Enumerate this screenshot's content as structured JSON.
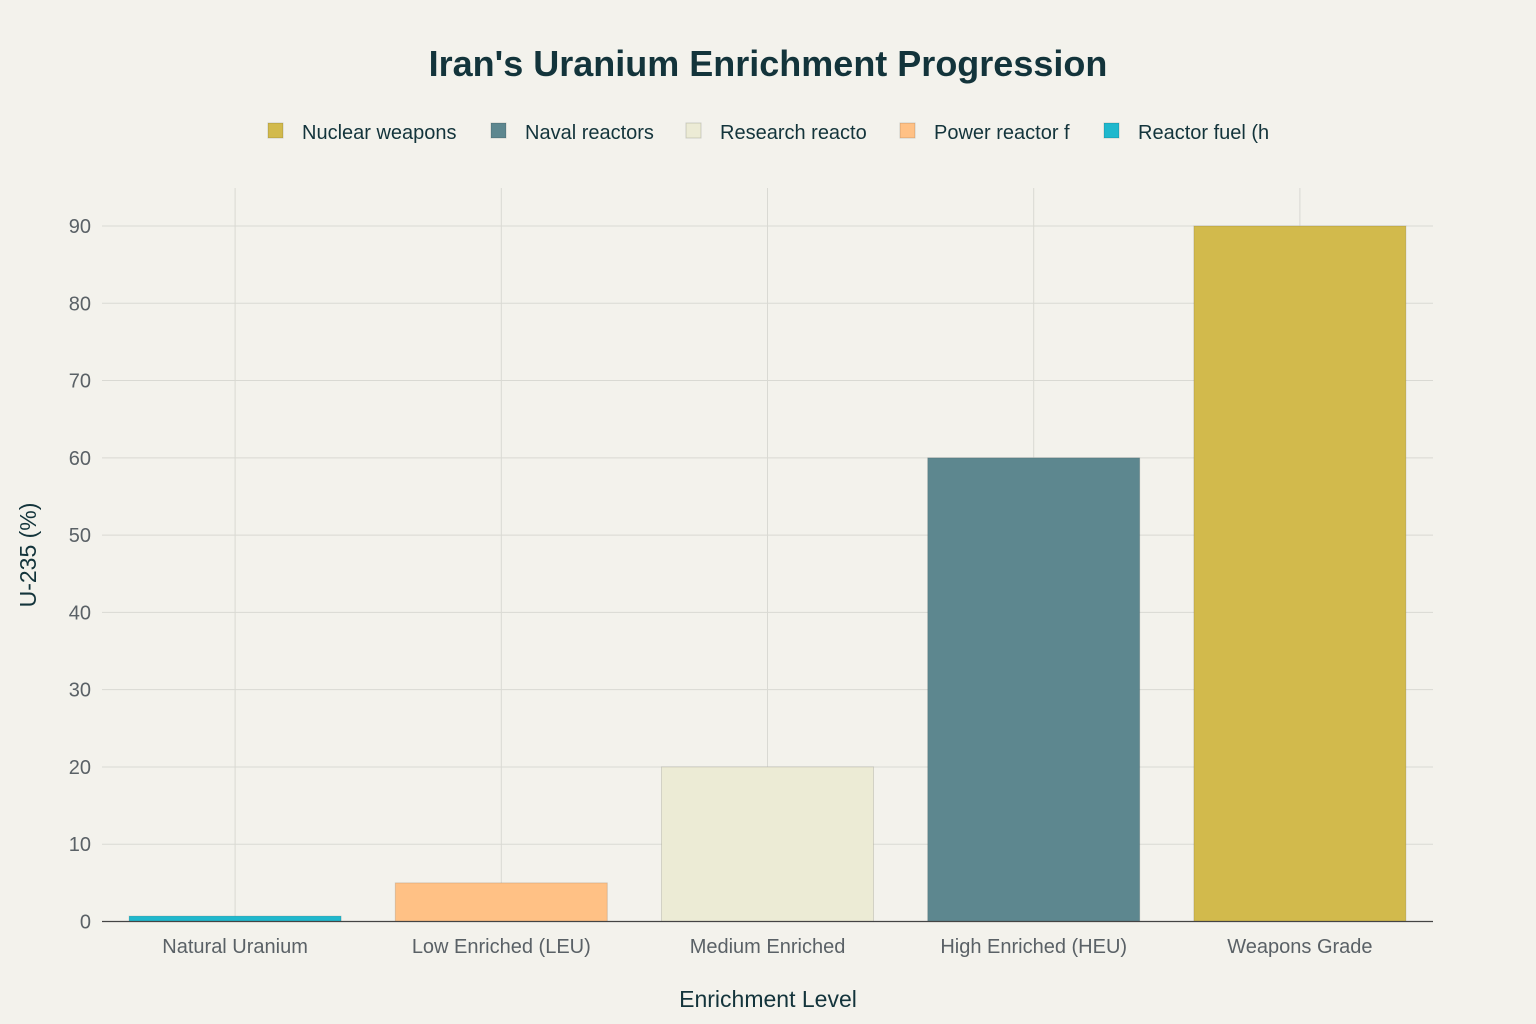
{
  "chart_data": {
    "type": "bar",
    "title": "Iran's Uranium Enrichment Progression",
    "xlabel": "Enrichment Level",
    "ylabel": "U-235 (%)",
    "categories": [
      "Natural Uranium",
      "Low Enriched (LEU)",
      "Medium Enriched",
      "High Enriched (HEU)",
      "Weapons Grade"
    ],
    "values": [
      0.7,
      5,
      20,
      60,
      90
    ],
    "bar_colors": [
      "#1fb8cd",
      "#ffc185",
      "#eceBd5",
      "#5d878f",
      "#d2ba4c"
    ],
    "ylim": [
      0,
      95
    ],
    "yticks": [
      0,
      10,
      20,
      30,
      40,
      50,
      60,
      70,
      80,
      90
    ],
    "grid": true,
    "legend_position": "top",
    "legend": [
      {
        "label": "Nuclear weapons",
        "color": "#d2ba4c"
      },
      {
        "label": "Naval reactors",
        "color": "#5d878f"
      },
      {
        "label": "Research reacto",
        "color": "#eceBd5"
      },
      {
        "label": "Power reactor f",
        "color": "#ffc185"
      },
      {
        "label": "Reactor fuel (h",
        "color": "#1fb8cd"
      }
    ]
  }
}
